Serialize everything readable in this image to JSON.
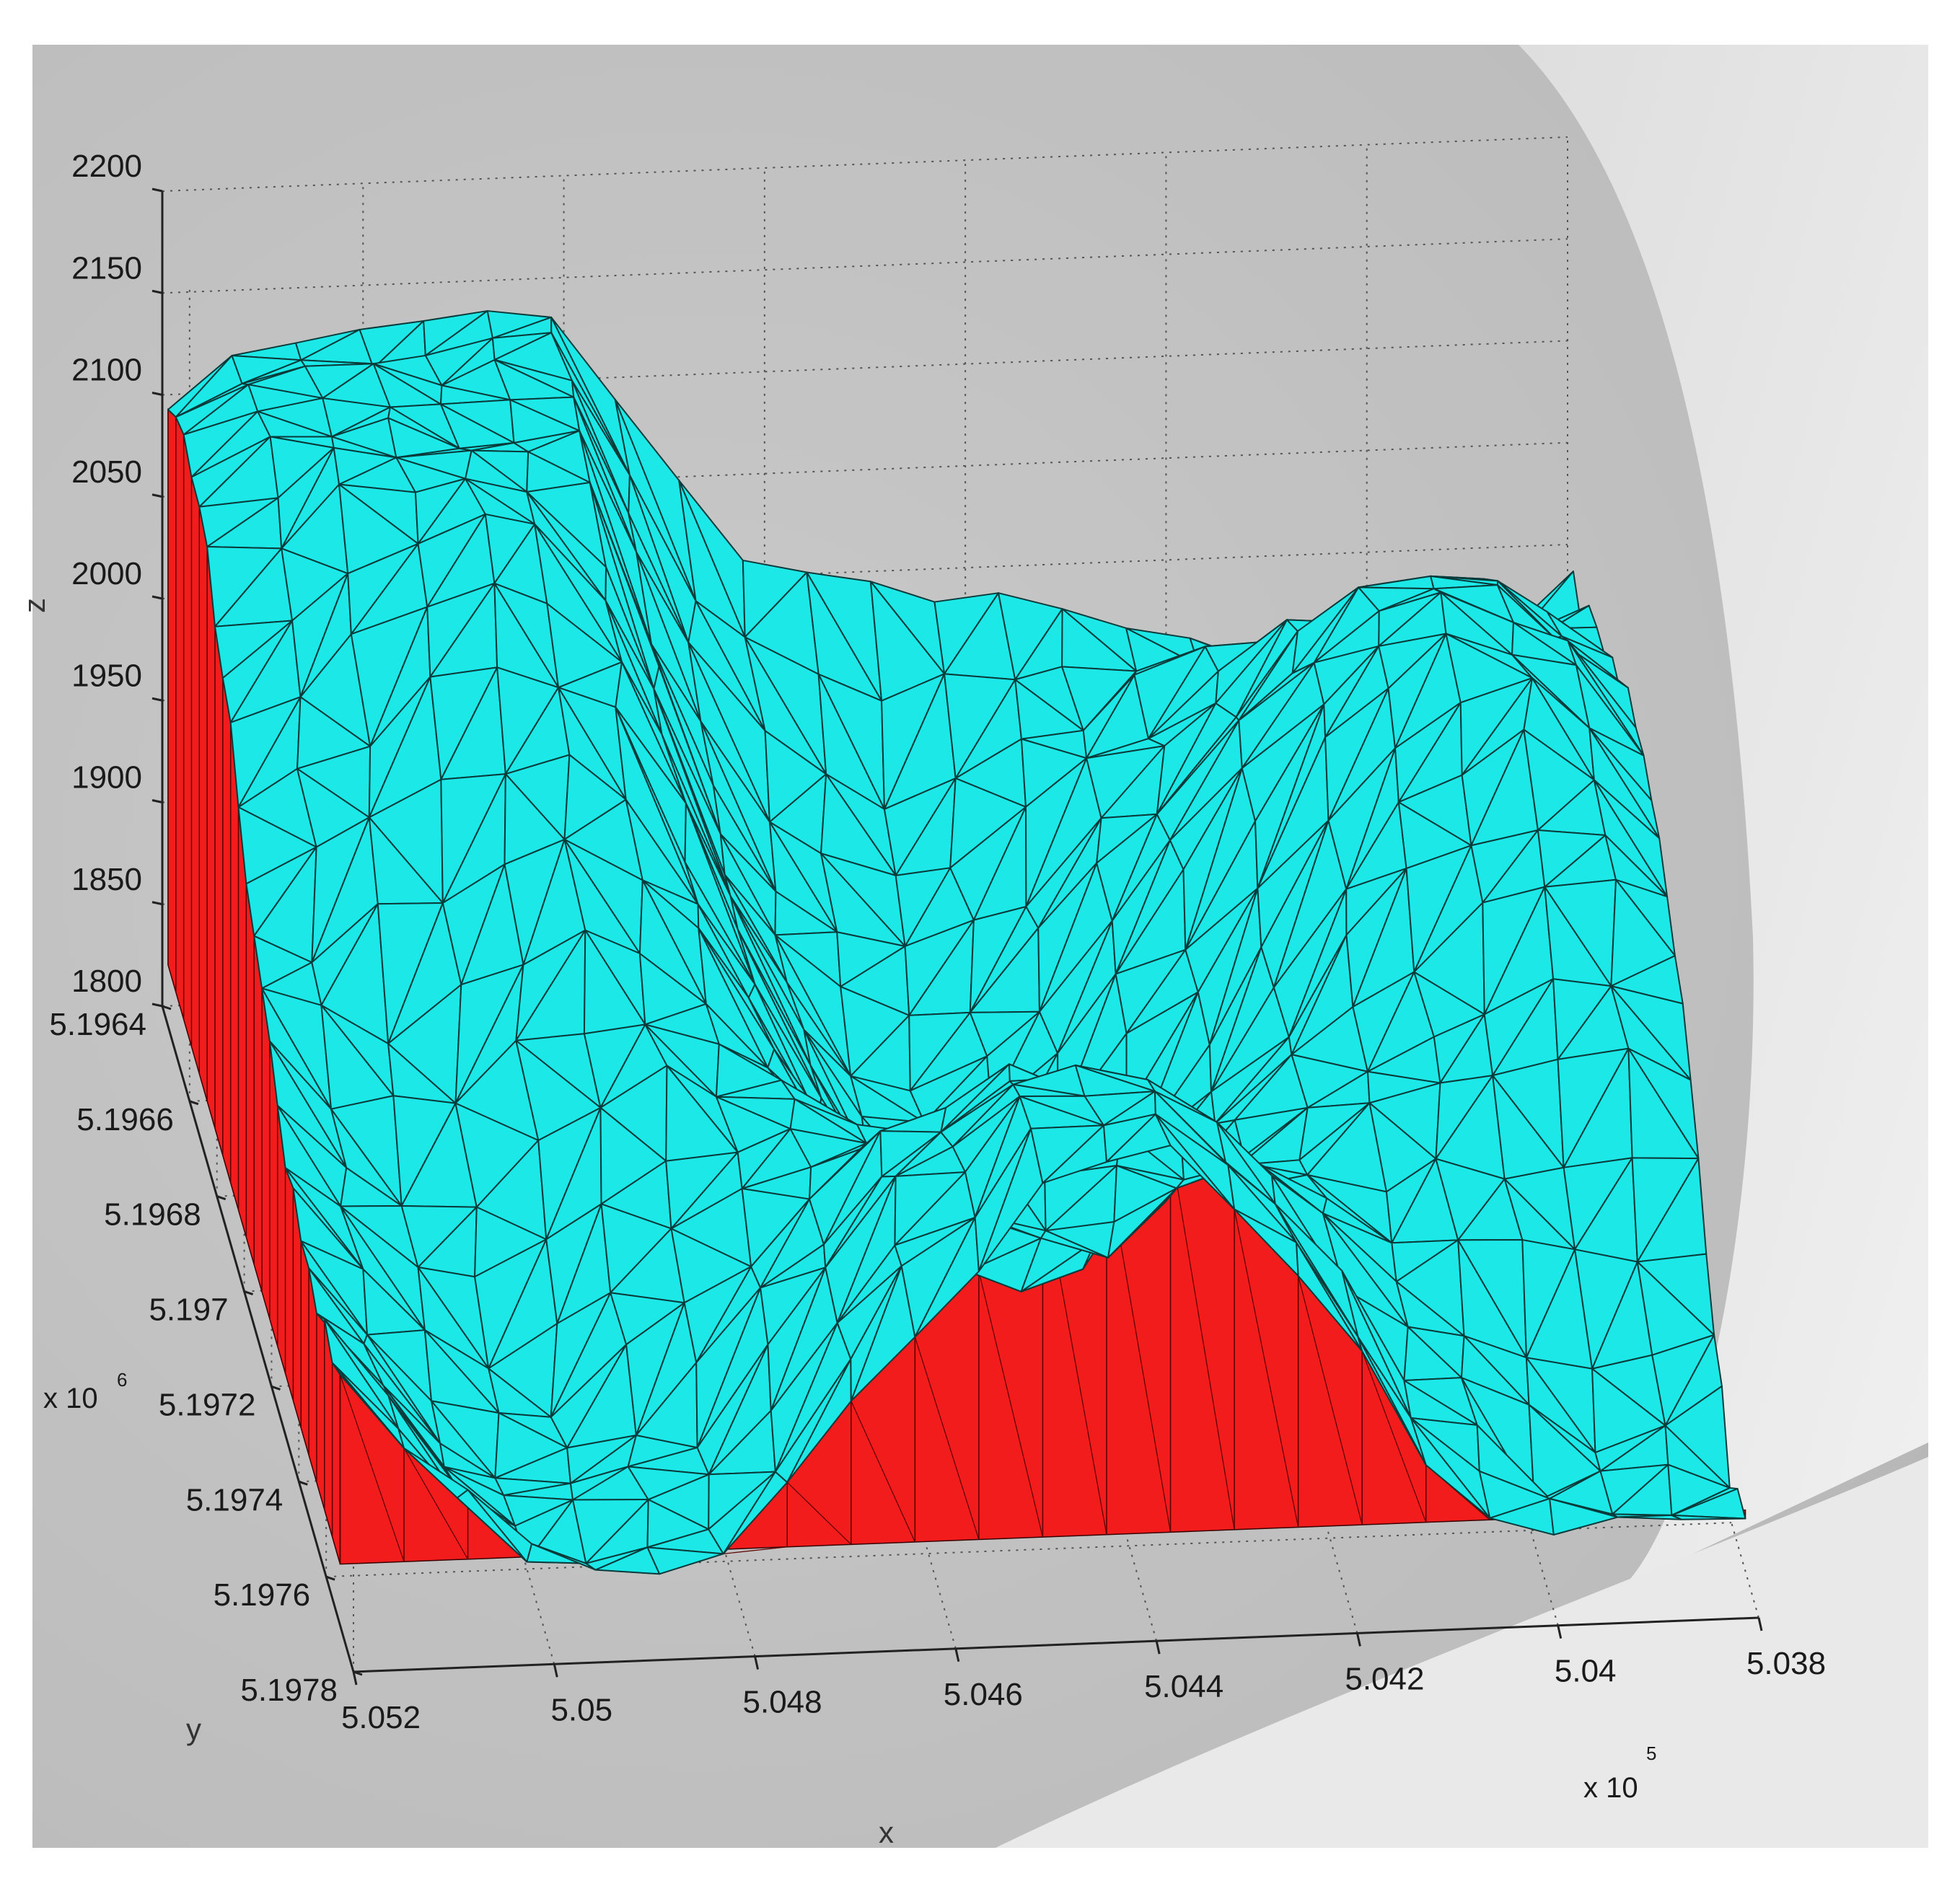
{
  "chart_data": {
    "type": "surface",
    "view": "3d",
    "axes": {
      "z": {
        "label": "z",
        "range": [
          1800,
          2200
        ],
        "ticks": [
          "2200",
          "2150",
          "2100",
          "2050",
          "2000",
          "1950",
          "1900",
          "1850",
          "1800"
        ]
      },
      "y": {
        "label": "y",
        "multiplier": "x 10",
        "exponent": "6",
        "range": [
          5.1964,
          5.1978
        ],
        "ticks": [
          "5.1964",
          "5.1966",
          "5.1968",
          "5.197",
          "5.1972",
          "5.1974",
          "5.1976",
          "5.1978"
        ]
      },
      "x": {
        "label": "x",
        "multiplier": "x 10",
        "exponent": "5",
        "range": [
          5.038,
          5.052
        ],
        "ticks": [
          "5.052",
          "5.05",
          "5.048",
          "5.046",
          "5.044",
          "5.042",
          "5.04",
          "5.038"
        ]
      }
    },
    "grid": true,
    "colors": {
      "surface_top": "#1ce8e8",
      "surface_sides": "#f21c1c",
      "mesh_edges": "#0b3a3a",
      "background_panel": "#c8c8c8"
    }
  }
}
